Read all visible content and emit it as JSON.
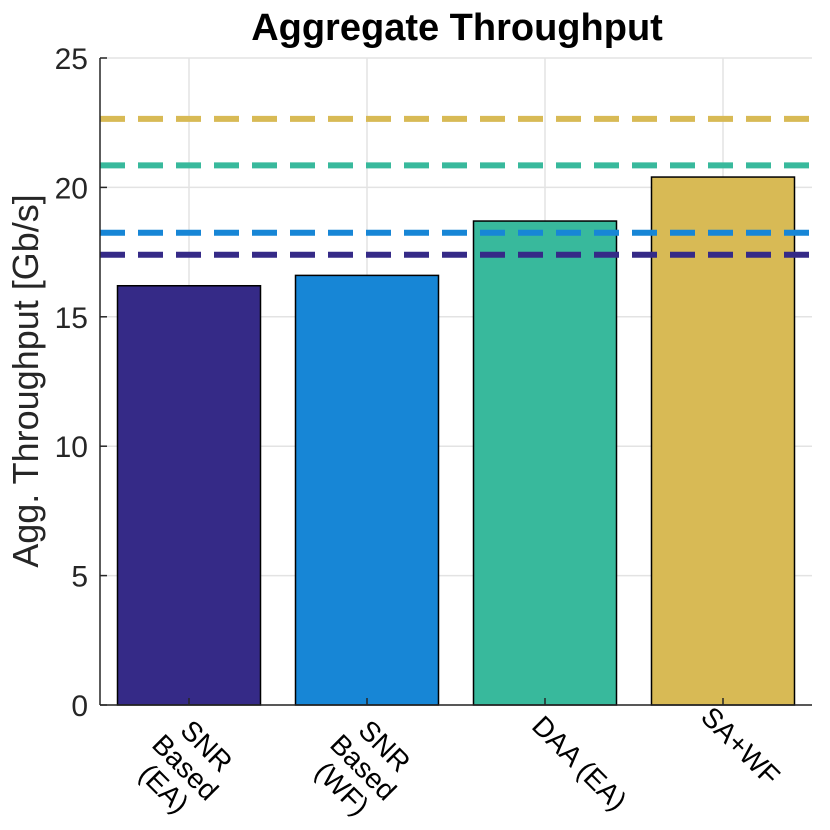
{
  "chart_data": {
    "type": "bar",
    "title": "Aggregate Throughput",
    "xlabel": "",
    "ylabel": "Agg. Throughput [Gb/s]",
    "ylim": [
      0,
      25
    ],
    "yticks": [
      "0",
      "5",
      "10",
      "15",
      "20",
      "25"
    ],
    "grid": true,
    "categories": [
      [
        "SNR",
        "Based",
        "(EA)"
      ],
      [
        "SNR",
        "Based",
        "(WF)"
      ],
      [
        "DAA (EA)"
      ],
      [
        "SA+WF"
      ]
    ],
    "values": [
      16.2,
      16.6,
      18.7,
      20.4
    ],
    "colors": [
      "#352a87",
      "#1786d6",
      "#38b99c",
      "#d8ba55"
    ],
    "reference_lines": [
      {
        "value": 17.4,
        "color": "#352a87",
        "style": "dashed"
      },
      {
        "value": 18.25,
        "color": "#1786d6",
        "style": "dashed"
      },
      {
        "value": 20.85,
        "color": "#38b99c",
        "style": "dashed"
      },
      {
        "value": 22.65,
        "color": "#d8ba55",
        "style": "dashed"
      }
    ]
  }
}
